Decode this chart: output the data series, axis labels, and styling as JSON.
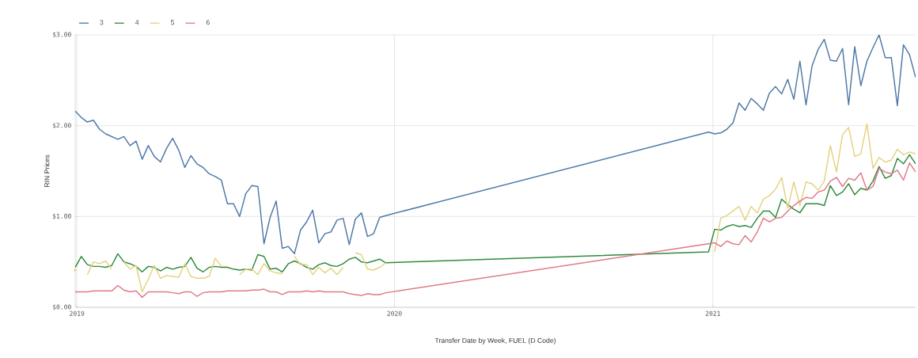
{
  "chart_data": {
    "type": "line",
    "xlabel": "Transfer Date by Week, FUEL (D Code)",
    "ylabel": "RIN Prices",
    "x": [
      "2018-12-30",
      "2019-01-06",
      "2019-01-13",
      "2019-01-20",
      "2019-01-27",
      "2019-02-03",
      "2019-02-10",
      "2019-02-17",
      "2019-02-24",
      "2019-03-03",
      "2019-03-10",
      "2019-03-17",
      "2019-03-24",
      "2019-03-31",
      "2019-04-07",
      "2019-04-14",
      "2019-04-21",
      "2019-04-28",
      "2019-05-05",
      "2019-05-12",
      "2019-05-19",
      "2019-05-26",
      "2019-06-02",
      "2019-06-09",
      "2019-06-16",
      "2019-06-23",
      "2019-06-30",
      "2019-07-07",
      "2019-07-14",
      "2019-07-21",
      "2019-07-28",
      "2019-08-04",
      "2019-08-11",
      "2019-08-18",
      "2019-08-25",
      "2019-09-01",
      "2019-09-08",
      "2019-09-15",
      "2019-09-22",
      "2019-09-29",
      "2019-10-06",
      "2019-10-13",
      "2019-10-20",
      "2019-10-27",
      "2019-11-03",
      "2019-11-10",
      "2019-11-17",
      "2019-11-24",
      "2019-12-01",
      "2019-12-08",
      "2019-12-15",
      "2019-12-22",
      "2020-12-27",
      "2021-01-03",
      "2021-01-10",
      "2021-01-17",
      "2021-01-24",
      "2021-01-31",
      "2021-02-07",
      "2021-02-14",
      "2021-02-21",
      "2021-02-28",
      "2021-03-07",
      "2021-03-14",
      "2021-03-21",
      "2021-03-28",
      "2021-04-04",
      "2021-04-11",
      "2021-04-18",
      "2021-04-25",
      "2021-05-02",
      "2021-05-09",
      "2021-05-16",
      "2021-05-23",
      "2021-05-30",
      "2021-06-06",
      "2021-06-13",
      "2021-06-20",
      "2021-06-27",
      "2021-07-04",
      "2021-07-11",
      "2021-07-18",
      "2021-07-25",
      "2021-08-01",
      "2021-08-08",
      "2021-08-15",
      "2021-08-22"
    ],
    "series": [
      {
        "name": "3",
        "color": "#4e79a7",
        "values": [
          2.16,
          2.09,
          2.04,
          2.06,
          1.96,
          1.91,
          1.88,
          1.85,
          1.88,
          1.78,
          1.83,
          1.63,
          1.78,
          1.66,
          1.6,
          1.75,
          1.86,
          1.73,
          1.54,
          1.67,
          1.58,
          1.54,
          1.47,
          1.44,
          1.4,
          1.14,
          1.14,
          1.0,
          1.25,
          1.34,
          1.33,
          0.7,
          0.99,
          1.17,
          0.65,
          0.67,
          0.59,
          0.85,
          0.94,
          1.07,
          0.71,
          0.81,
          0.83,
          0.96,
          0.98,
          0.69,
          0.97,
          1.04,
          0.78,
          0.81,
          0.99,
          1.01,
          1.93,
          1.91,
          1.92,
          1.96,
          2.03,
          2.25,
          2.17,
          2.3,
          2.24,
          2.17,
          2.36,
          2.43,
          2.35,
          2.51,
          2.29,
          2.71,
          2.23,
          2.66,
          2.84,
          2.95,
          2.72,
          2.71,
          2.85,
          2.23,
          2.87,
          2.44,
          2.71,
          2.86,
          3.0,
          2.75,
          2.75,
          2.22,
          2.89,
          2.78,
          2.53
        ]
      },
      {
        "name": "4",
        "color": "#2e8b3e",
        "values": [
          0.44,
          0.56,
          0.47,
          0.45,
          0.45,
          0.44,
          0.46,
          0.59,
          0.5,
          0.48,
          0.45,
          0.39,
          0.45,
          0.44,
          0.4,
          0.44,
          0.42,
          0.44,
          0.45,
          0.55,
          0.43,
          0.39,
          0.44,
          0.45,
          0.44,
          0.44,
          0.42,
          0.41,
          0.42,
          0.41,
          0.58,
          0.56,
          0.42,
          0.43,
          0.39,
          0.48,
          0.51,
          0.48,
          0.44,
          0.42,
          0.47,
          0.49,
          0.46,
          0.45,
          0.48,
          0.53,
          0.55,
          0.5,
          0.49,
          0.51,
          0.53,
          0.49,
          0.61,
          0.86,
          0.85,
          0.89,
          0.91,
          0.89,
          0.9,
          0.88,
          0.98,
          1.06,
          1.06,
          0.99,
          1.19,
          1.13,
          1.08,
          1.04,
          1.14,
          1.14,
          1.14,
          1.12,
          1.34,
          1.23,
          1.27,
          1.36,
          1.24,
          1.31,
          1.29,
          1.39,
          1.55,
          1.42,
          1.45,
          1.64,
          1.58,
          1.68,
          1.58
        ]
      },
      {
        "name": "5",
        "color": "#e6d27f",
        "values": [
          0.41,
          null,
          0.36,
          0.5,
          0.48,
          0.51,
          0.42,
          null,
          0.5,
          0.42,
          0.46,
          0.17,
          0.31,
          0.46,
          0.32,
          0.35,
          0.34,
          0.33,
          0.48,
          0.34,
          0.32,
          0.32,
          0.34,
          0.54,
          0.45,
          0.45,
          null,
          0.36,
          0.42,
          0.42,
          0.36,
          0.48,
          0.4,
          0.38,
          0.37,
          null,
          0.56,
          0.47,
          0.47,
          0.36,
          0.44,
          0.38,
          0.43,
          0.36,
          0.44,
          null,
          0.6,
          0.58,
          0.42,
          0.41,
          0.44,
          0.49,
          null,
          0.61,
          0.98,
          1.01,
          1.06,
          1.11,
          0.96,
          1.11,
          1.04,
          1.19,
          1.23,
          1.3,
          1.43,
          1.09,
          1.38,
          1.12,
          1.38,
          1.36,
          1.29,
          1.39,
          1.78,
          1.49,
          1.9,
          1.98,
          1.66,
          1.69,
          2.02,
          1.53,
          1.65,
          1.6,
          1.62,
          1.74,
          1.68,
          1.71,
          1.69
        ]
      },
      {
        "name": "6",
        "color": "#e07a87",
        "values": [
          0.17,
          0.17,
          0.17,
          0.18,
          0.18,
          0.18,
          0.18,
          0.24,
          0.19,
          0.17,
          0.18,
          0.11,
          0.17,
          0.17,
          0.17,
          0.17,
          0.16,
          0.15,
          0.17,
          0.17,
          0.12,
          0.16,
          0.17,
          0.17,
          0.17,
          0.18,
          0.18,
          0.18,
          0.18,
          0.19,
          0.19,
          0.2,
          0.17,
          0.17,
          0.14,
          0.17,
          0.17,
          0.17,
          0.18,
          0.17,
          0.18,
          0.17,
          0.17,
          0.17,
          0.17,
          0.15,
          0.14,
          0.13,
          0.15,
          0.14,
          0.14,
          0.16,
          0.7,
          0.71,
          0.67,
          0.73,
          0.7,
          0.69,
          0.79,
          0.72,
          0.83,
          0.98,
          0.94,
          0.98,
          0.99,
          1.06,
          1.12,
          1.17,
          1.21,
          1.2,
          1.27,
          1.29,
          1.39,
          1.43,
          1.33,
          1.42,
          1.4,
          1.48,
          1.29,
          1.33,
          1.53,
          1.49,
          1.47,
          1.51,
          1.4,
          1.59,
          1.49
        ]
      }
    ],
    "xlim": [
      "2018-12-30",
      "2021-08-22"
    ],
    "ylim": [
      0,
      3
    ],
    "xticks": [
      {
        "value": "2019-01-01",
        "label": "2019"
      },
      {
        "value": "2020-01-01",
        "label": "2020"
      },
      {
        "value": "2021-01-01",
        "label": "2021"
      }
    ],
    "yticks": [
      {
        "value": 0,
        "label": "$0.00"
      },
      {
        "value": 1,
        "label": "$1.00"
      },
      {
        "value": 2,
        "label": "$2.00"
      },
      {
        "value": 3,
        "label": "$3.00"
      }
    ],
    "grid": true,
    "legend": "top left"
  }
}
